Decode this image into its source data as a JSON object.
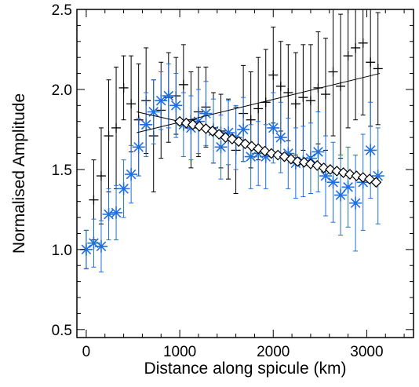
{
  "chart_data": {
    "type": "scatter",
    "xlabel": "Distance along spicule (km)",
    "ylabel": "Normalised Amplitude",
    "xlim": [
      -100,
      3500
    ],
    "ylim": [
      0.45,
      2.5
    ],
    "x_ticks": [
      0,
      1000,
      2000,
      3000
    ],
    "x_tick_labels": [
      "0",
      "1000",
      "2000",
      "3000"
    ],
    "y_ticks": [
      0.5,
      1.0,
      1.5,
      2.0,
      2.5
    ],
    "y_tick_labels": [
      "0.5",
      "1.0",
      "1.5",
      "2.0",
      "2.5"
    ],
    "grid": false,
    "colors": {
      "black_series": "#000000",
      "blue_series": "#1f6fe0",
      "fit": "#000000"
    },
    "series": [
      {
        "marker": "plus",
        "color": "#000000",
        "x": [
          0,
          80,
          160,
          240,
          320,
          400,
          480,
          560,
          640,
          720,
          800,
          880,
          960,
          1040,
          1120,
          1200,
          1280,
          1360,
          1440,
          1520,
          1600,
          1680,
          1760,
          1840,
          1920,
          2000,
          2080,
          2160,
          2240,
          2320,
          2400,
          2480,
          2560,
          2640,
          2720,
          2800,
          2880,
          2960,
          3040,
          3120
        ],
        "y": [
          1.0,
          1.31,
          1.46,
          1.71,
          1.76,
          2.01,
          1.91,
          1.81,
          1.93,
          1.71,
          1.87,
          1.95,
          1.96,
          2.03,
          1.81,
          1.86,
          1.89,
          1.76,
          1.74,
          1.69,
          1.62,
          1.85,
          1.81,
          1.88,
          1.92,
          2.09,
          2.02,
          1.98,
          1.91,
          1.95,
          1.93,
          2.01,
          1.97,
          2.11,
          2.02,
          2.21,
          2.26,
          2.29,
          2.17,
          2.13
        ],
        "err": [
          0.12,
          0.25,
          0.3,
          0.35,
          0.38,
          0.2,
          0.3,
          0.35,
          0.33,
          0.35,
          0.3,
          0.28,
          0.24,
          0.25,
          0.3,
          0.28,
          0.25,
          0.22,
          0.23,
          0.25,
          0.27,
          0.3,
          0.3,
          0.32,
          0.33,
          0.3,
          0.28,
          0.3,
          0.32,
          0.33,
          0.35,
          0.35,
          0.35,
          0.4,
          0.45,
          0.45,
          0.45,
          0.45,
          0.4,
          0.35
        ]
      },
      {
        "marker": "asterisk",
        "color": "#1f6fe0",
        "x": [
          0,
          80,
          160,
          240,
          320,
          400,
          480,
          560,
          640,
          720,
          800,
          880,
          960,
          1040,
          1120,
          1200,
          1280,
          1360,
          1440,
          1520,
          1600,
          1680,
          1760,
          1840,
          1920,
          2000,
          2080,
          2160,
          2240,
          2320,
          2400,
          2480,
          2560,
          2640,
          2720,
          2800,
          2880,
          2960,
          3040,
          3120
        ],
        "y": [
          1.0,
          1.04,
          1.02,
          1.22,
          1.23,
          1.38,
          1.47,
          1.64,
          1.78,
          1.86,
          1.93,
          1.96,
          1.9,
          1.78,
          1.76,
          1.8,
          1.85,
          1.74,
          1.64,
          1.73,
          1.7,
          1.75,
          1.58,
          1.6,
          1.58,
          1.76,
          1.7,
          1.6,
          1.54,
          1.55,
          1.57,
          1.61,
          1.46,
          1.42,
          1.34,
          1.39,
          1.29,
          1.42,
          1.62,
          1.46
        ],
        "err": [
          0.12,
          0.15,
          0.16,
          0.16,
          0.17,
          0.18,
          0.18,
          0.18,
          0.2,
          0.2,
          0.18,
          0.2,
          0.2,
          0.2,
          0.2,
          0.2,
          0.2,
          0.2,
          0.2,
          0.2,
          0.2,
          0.2,
          0.2,
          0.2,
          0.2,
          0.22,
          0.22,
          0.22,
          0.22,
          0.22,
          0.22,
          0.25,
          0.25,
          0.25,
          0.25,
          0.25,
          0.3,
          0.3,
          0.3,
          0.3
        ]
      }
    ],
    "fit_line": {
      "x": [
        540,
        3140
      ],
      "y": [
        1.73,
        2.1
      ]
    },
    "model": {
      "marker": "diamond",
      "x": [
        1000,
        1070,
        1140,
        1210,
        1280,
        1350,
        1420,
        1490,
        1560,
        1630,
        1700,
        1770,
        1840,
        1910,
        1980,
        2050,
        2120,
        2190,
        2260,
        2330,
        2400,
        2470,
        2540,
        2610,
        2680,
        2750,
        2820,
        2890,
        2960,
        3030,
        3100
      ],
      "y": [
        1.8,
        1.79,
        1.78,
        1.77,
        1.755,
        1.74,
        1.72,
        1.7,
        1.69,
        1.675,
        1.66,
        1.645,
        1.63,
        1.615,
        1.6,
        1.59,
        1.58,
        1.565,
        1.55,
        1.545,
        1.535,
        1.525,
        1.51,
        1.5,
        1.49,
        1.48,
        1.47,
        1.46,
        1.45,
        1.44,
        1.42
      ]
    },
    "model_line": {
      "x": [
        540,
        1000
      ],
      "y": [
        1.86,
        1.8
      ]
    }
  }
}
